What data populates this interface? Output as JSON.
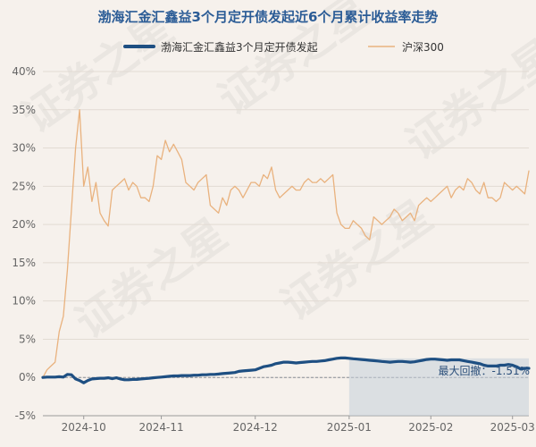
{
  "chart_data": {
    "type": "line",
    "title": "渤海汇金汇鑫益3个月定开债发起近6个月累计收益率走势",
    "ylim": [
      -5,
      40
    ],
    "y_ticks": [
      "-5%",
      "0%",
      "5%",
      "10%",
      "15%",
      "20%",
      "25%",
      "30%",
      "35%",
      "40%"
    ],
    "x_ticks": [
      "2024-10",
      "2024-11",
      "2024-12",
      "2025-01",
      "2025-02",
      "2025-03"
    ],
    "x_tick_index": [
      10,
      29,
      52,
      75,
      95,
      115
    ],
    "watermark": "证券之星",
    "drawdown": {
      "label": "最大回撤：-1.51%",
      "value": -1.51,
      "start_index": 75,
      "end_index": 119
    },
    "colors": {
      "fund": "#1e4f82",
      "index": "#e9b27e",
      "drawdown": "#c5d0da",
      "grid": "#e2dbd3"
    },
    "series": [
      {
        "name": "渤海汇金汇鑫益3个月定开债发起",
        "values": [
          0.0,
          0.05,
          0.05,
          0.05,
          0.1,
          0.05,
          0.4,
          0.35,
          -0.2,
          -0.4,
          -0.7,
          -0.4,
          -0.2,
          -0.15,
          -0.1,
          -0.1,
          -0.05,
          -0.15,
          -0.05,
          -0.2,
          -0.3,
          -0.3,
          -0.25,
          -0.25,
          -0.2,
          -0.15,
          -0.1,
          -0.05,
          0.0,
          0.05,
          0.1,
          0.15,
          0.2,
          0.2,
          0.25,
          0.25,
          0.25,
          0.3,
          0.3,
          0.35,
          0.35,
          0.4,
          0.4,
          0.45,
          0.5,
          0.55,
          0.6,
          0.65,
          0.8,
          0.85,
          0.9,
          0.95,
          1.0,
          1.2,
          1.4,
          1.5,
          1.6,
          1.8,
          1.9,
          2.0,
          2.0,
          1.95,
          1.9,
          1.95,
          2.0,
          2.05,
          2.1,
          2.1,
          2.15,
          2.2,
          2.3,
          2.4,
          2.5,
          2.55,
          2.55,
          2.5,
          2.45,
          2.4,
          2.35,
          2.3,
          2.25,
          2.2,
          2.15,
          2.1,
          2.05,
          2.0,
          2.05,
          2.1,
          2.1,
          2.05,
          2.0,
          2.05,
          2.15,
          2.25,
          2.35,
          2.4,
          2.4,
          2.35,
          2.3,
          2.25,
          2.3,
          2.3,
          2.3,
          2.2,
          2.1,
          2.0,
          1.9,
          1.8,
          1.6,
          1.5,
          1.5,
          1.5,
          1.6,
          1.6,
          1.7,
          1.6,
          1.4,
          1.1,
          1.2,
          1.2
        ]
      },
      {
        "name": "沪深300",
        "values": [
          0.0,
          1.0,
          1.5,
          2.0,
          6.0,
          8.0,
          14.0,
          22.0,
          30.0,
          35.0,
          25.0,
          27.5,
          23.0,
          25.5,
          21.5,
          20.5,
          19.8,
          24.5,
          25.0,
          25.5,
          26.0,
          24.5,
          25.5,
          25.0,
          23.5,
          23.5,
          23.0,
          25.0,
          29.0,
          28.5,
          31.0,
          29.5,
          30.5,
          29.5,
          28.5,
          25.5,
          25.0,
          24.5,
          25.5,
          26.0,
          26.5,
          22.5,
          22.0,
          21.5,
          23.5,
          22.5,
          24.5,
          25.0,
          24.5,
          23.5,
          24.5,
          25.5,
          25.5,
          25.0,
          26.5,
          26.0,
          27.5,
          24.5,
          23.5,
          24.0,
          24.5,
          25.0,
          24.5,
          24.5,
          25.5,
          26.0,
          25.5,
          25.5,
          26.0,
          25.5,
          26.0,
          26.5,
          21.5,
          20.0,
          19.5,
          19.5,
          20.5,
          20.0,
          19.5,
          18.5,
          18.0,
          21.0,
          20.5,
          20.0,
          20.5,
          21.0,
          22.0,
          21.5,
          20.5,
          21.0,
          21.5,
          20.5,
          22.5,
          23.0,
          23.5,
          23.0,
          23.5,
          24.0,
          24.5,
          25.0,
          23.5,
          24.5,
          25.0,
          24.5,
          26.0,
          25.5,
          24.5,
          24.0,
          25.5,
          23.5,
          23.5,
          23.0,
          23.5,
          25.5,
          25.0,
          24.5,
          25.0,
          24.5,
          24.0,
          27.0
        ]
      }
    ]
  }
}
